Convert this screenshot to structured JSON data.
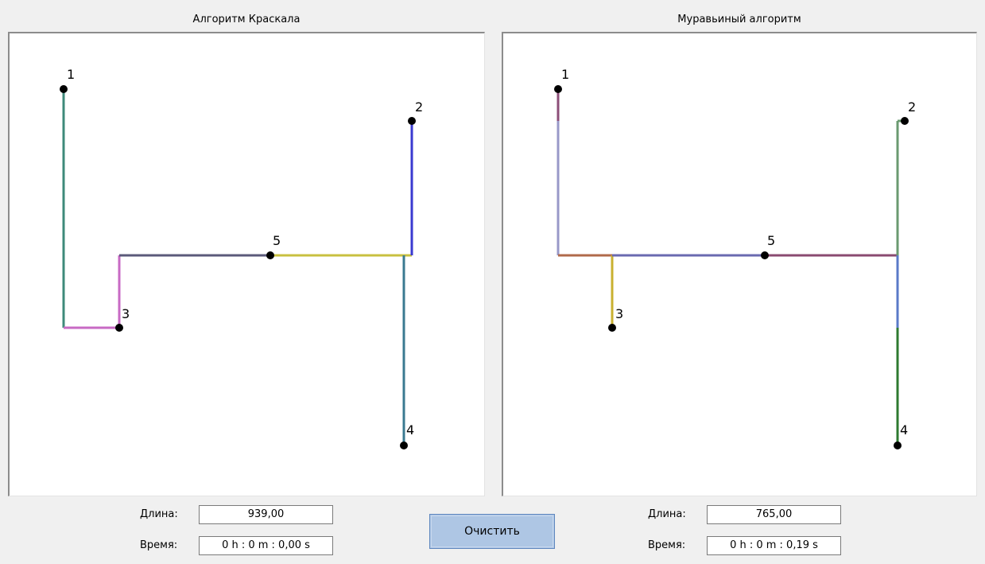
{
  "kruskal": {
    "title": "Алгоритм Краскала",
    "length_label": "Длина:",
    "length_value": "939,00",
    "time_label": "Время:",
    "time_value": "0 h : 0 m : 0,00 s"
  },
  "ant": {
    "title": "Муравьиный алгоритм",
    "length_label": "Длина:",
    "length_value": "765,00",
    "time_label": "Время:",
    "time_value": "0 h : 0 m : 0,19 s"
  },
  "clear_button": {
    "label": "Очистить"
  },
  "graph": {
    "nodes": [
      {
        "id": "1",
        "label": "1"
      },
      {
        "id": "2",
        "label": "2"
      },
      {
        "id": "3",
        "label": "3"
      },
      {
        "id": "4",
        "label": "4"
      },
      {
        "id": "5",
        "label": "5"
      }
    ]
  },
  "colors": {
    "node_fill": "#000000",
    "button_bg": "#aec6e4",
    "canvas_bg": "#ffffff"
  }
}
